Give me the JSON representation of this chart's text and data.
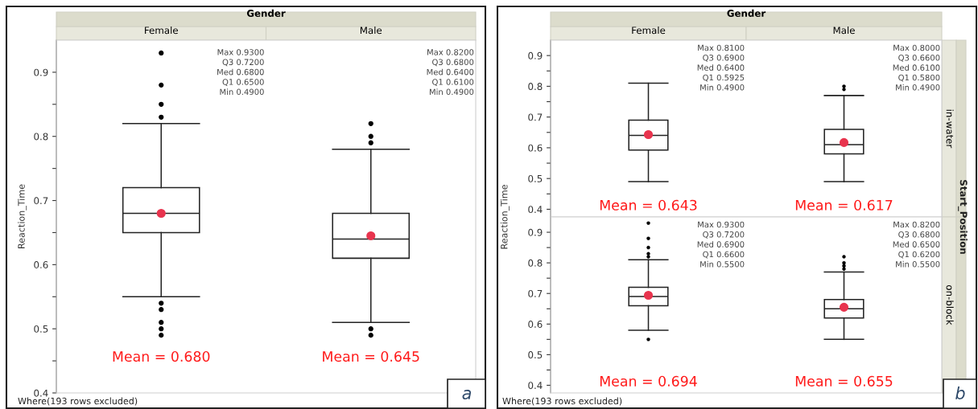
{
  "chart_data": [
    {
      "type": "box",
      "title": "Gender",
      "categories": [
        "Female",
        "Male"
      ],
      "ylabel": "Reaction_Time",
      "ylim": [
        0.4,
        0.95
      ],
      "yticks": [
        0.4,
        {
          "value": 0.45,
          "label": null
        },
        0.5,
        {
          "value": 0.55,
          "label": null
        },
        0.6,
        {
          "value": 0.65,
          "label": null
        },
        0.7,
        {
          "value": 0.75,
          "label": null
        },
        0.8,
        {
          "value": 0.85,
          "label": null
        },
        0.9
      ],
      "boxes": [
        {
          "low": 0.55,
          "q1": 0.65,
          "median": 0.68,
          "q3": 0.72,
          "high": 0.82,
          "mean": 0.68,
          "outliers": [
            0.93,
            0.88,
            0.85,
            0.83,
            0.54,
            0.53,
            0.51,
            0.5,
            0.49
          ]
        },
        {
          "low": 0.51,
          "q1": 0.61,
          "median": 0.64,
          "q3": 0.68,
          "high": 0.78,
          "mean": 0.645,
          "outliers": [
            0.82,
            0.8,
            0.79,
            0.5,
            0.49
          ]
        }
      ],
      "annotations": [
        "Max 0.9300\nQ3 0.7200\nMed 0.6800\nQ1 0.6500\nMin 0.4900",
        "Mean = 0.680",
        "Max 0.8200\nQ3 0.6800\nMed 0.6400\nQ1 0.6100\nMin 0.4900",
        "Mean = 0.645",
        "Where(193 rows excluded)",
        "a"
      ]
    },
    {
      "type": "box",
      "title": "Gender",
      "categories": [
        "Female",
        "Male"
      ],
      "ylabel": "Reaction_Time",
      "y2label": "in-water",
      "ylim": [
        0.375,
        0.95
      ],
      "yticks": [
        0.4,
        {
          "value": 0.45,
          "label": null
        },
        0.5,
        {
          "value": 0.55,
          "label": null
        },
        0.6,
        {
          "value": 0.65,
          "label": null
        },
        0.7,
        {
          "value": 0.75,
          "label": null
        },
        0.8,
        {
          "value": 0.85,
          "label": null
        },
        0.9
      ],
      "boxes": [
        {
          "low": 0.49,
          "q1": 0.5925,
          "median": 0.64,
          "q3": 0.69,
          "high": 0.81,
          "mean": 0.643
        },
        {
          "low": 0.49,
          "q1": 0.58,
          "median": 0.61,
          "q3": 0.66,
          "high": 0.77,
          "mean": 0.617,
          "outliers": [
            0.8,
            0.79
          ]
        }
      ],
      "annotations": [
        "Max 0.8100\nQ3 0.6900\nMed 0.6400\nQ1 0.5925\nMin 0.4900",
        "Mean = 0.643",
        "Max 0.8000\nQ3 0.6600\nMed 0.6100\nQ1 0.5800\nMin 0.4900",
        "Mean = 0.617",
        "Start_Position"
      ]
    },
    {
      "type": "box",
      "categories": [
        null,
        null
      ],
      "y2label": "on-block",
      "ylim": [
        0.375,
        0.95
      ],
      "tick_labels": "y",
      "yticks": [
        0.4,
        {
          "value": 0.45,
          "label": null
        },
        0.5,
        {
          "value": 0.55,
          "label": null
        },
        0.6,
        {
          "value": 0.65,
          "label": null
        },
        0.7,
        {
          "value": 0.75,
          "label": null
        },
        0.8,
        {
          "value": 0.85,
          "label": null
        },
        0.9
      ],
      "boxes": [
        {
          "low": 0.58,
          "q1": 0.66,
          "median": 0.69,
          "q3": 0.72,
          "high": 0.81,
          "mean": 0.694,
          "outliers": [
            0.93,
            0.88,
            0.85,
            0.83,
            0.82,
            0.55
          ]
        },
        {
          "low": 0.55,
          "q1": 0.62,
          "median": 0.65,
          "q3": 0.68,
          "high": 0.77,
          "mean": 0.655,
          "outliers": [
            0.82,
            0.8,
            0.79,
            0.78
          ]
        }
      ],
      "annotations": [
        "Max 0.9300\nQ3 0.7200\nMed 0.6900\nQ1 0.6600\nMin 0.5500",
        "Mean = 0.694",
        "Max 0.8200\nQ3 0.6800\nMed 0.6500\nQ1 0.6200\nMin 0.5500",
        "Mean = 0.655",
        "Where(193 rows excluded)",
        "b"
      ]
    }
  ]
}
